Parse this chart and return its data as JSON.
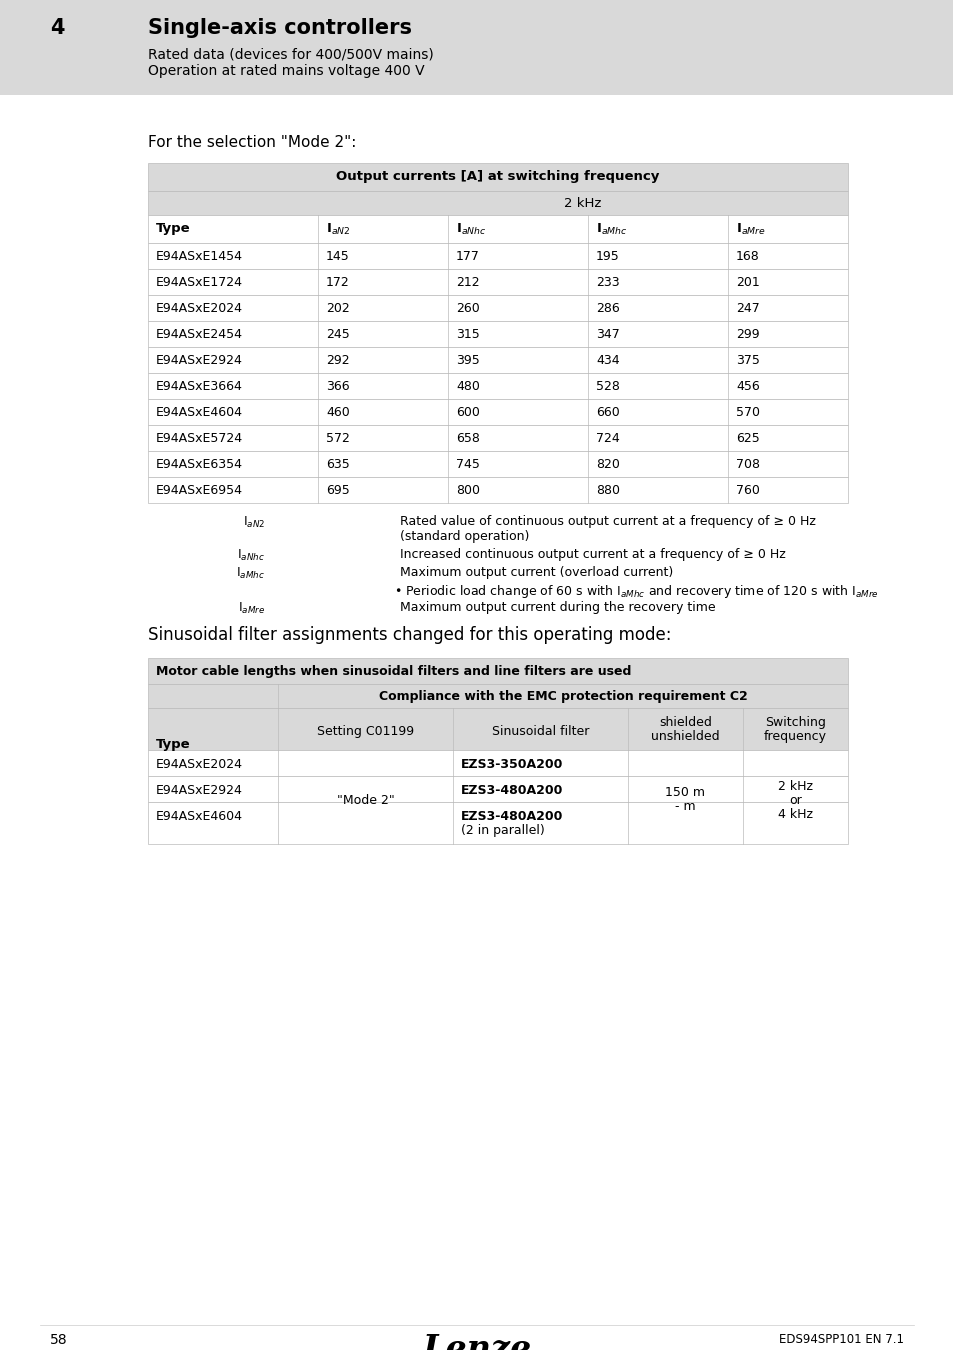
{
  "page_bg": "#ffffff",
  "header_bg": "#d9d9d9",
  "header_number": "4",
  "header_title": "Single-axis controllers",
  "header_sub1": "Rated data (devices for 400/500V mains)",
  "header_sub2": "Operation at rated mains voltage 400 V",
  "selection_text": "For the selection \"Mode 2\":",
  "table1_header_row1": "Output currents [A] at switching frequency",
  "table1_header_row2": "2 kHz",
  "table1_data": [
    [
      "E94ASxE1454",
      "145",
      "177",
      "195",
      "168"
    ],
    [
      "E94ASxE1724",
      "172",
      "212",
      "233",
      "201"
    ],
    [
      "E94ASxE2024",
      "202",
      "260",
      "286",
      "247"
    ],
    [
      "E94ASxE2454",
      "245",
      "315",
      "347",
      "299"
    ],
    [
      "E94ASxE2924",
      "292",
      "395",
      "434",
      "375"
    ],
    [
      "E94ASxE3664",
      "366",
      "480",
      "528",
      "456"
    ],
    [
      "E94ASxE4604",
      "460",
      "600",
      "660",
      "570"
    ],
    [
      "E94ASxE5724",
      "572",
      "658",
      "724",
      "625"
    ],
    [
      "E94ASxE6354",
      "635",
      "745",
      "820",
      "708"
    ],
    [
      "E94ASxE6954",
      "695",
      "800",
      "880",
      "760"
    ]
  ],
  "sinusoidal_title": "Sinusoidal filter assignments changed for this operating mode:",
  "table2_header1": "Motor cable lengths when sinusoidal filters and line filters are used",
  "table2_header2": "Compliance with the EMC protection requirement C2",
  "footer_page": "58",
  "footer_brand": "Lenze",
  "footer_doc": "EDS94SPP101 EN 7.1",
  "table_bg_dark": "#d9d9d9",
  "table_bg_light": "#ffffff",
  "text_color": "#000000",
  "border_color": "#bbbbbb"
}
